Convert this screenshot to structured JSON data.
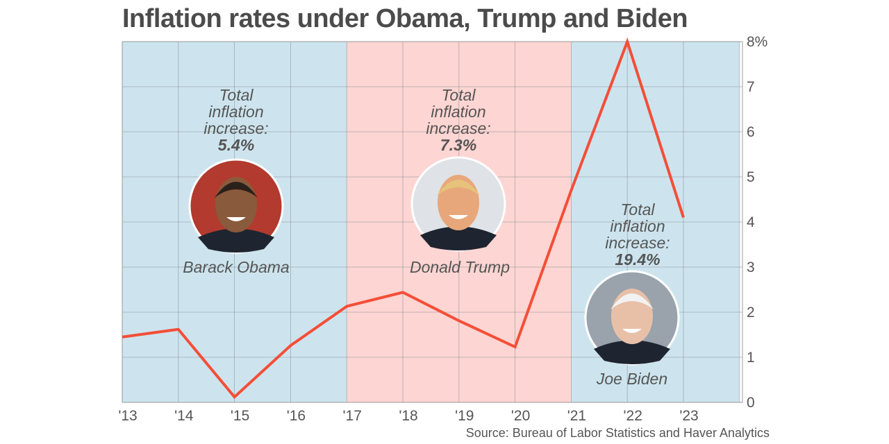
{
  "chart_data": {
    "type": "line",
    "title": "Inflation rates under Obama, Trump and Biden",
    "x": [
      "'13",
      "'14",
      "'15",
      "'16",
      "'17",
      "'18",
      "'19",
      "'20",
      "'21",
      "'22",
      "'23"
    ],
    "values": [
      1.45,
      1.62,
      0.12,
      1.26,
      2.13,
      2.44,
      1.81,
      1.23,
      4.7,
      8.0,
      4.1
    ],
    "ylim": [
      0,
      8
    ],
    "yticks": [
      "0",
      "1",
      "2",
      "3",
      "4",
      "5",
      "6",
      "7",
      "8%"
    ],
    "grid": true,
    "y_axis_side": "right",
    "line_color": "#f44e38",
    "periods": [
      {
        "name": "Barack Obama",
        "label": [
          "Total",
          "inflation",
          "increase:"
        ],
        "value": "5.4%",
        "from": "'13",
        "to": "'17",
        "color": "#cde4ee"
      },
      {
        "name": "Donald Trump",
        "label": [
          "Total",
          "inflation",
          "increase:"
        ],
        "value": "7.3%",
        "from": "'17",
        "to": "'21",
        "color": "#fdd5d2"
      },
      {
        "name": "Joe Biden",
        "label": [
          "Total",
          "inflation",
          "increase:"
        ],
        "value": "19.4%",
        "from": "'21",
        "to": "'24",
        "color": "#cde4ee"
      }
    ],
    "source": "Source: Bureau of Labor Statistics and Haver Analytics"
  }
}
